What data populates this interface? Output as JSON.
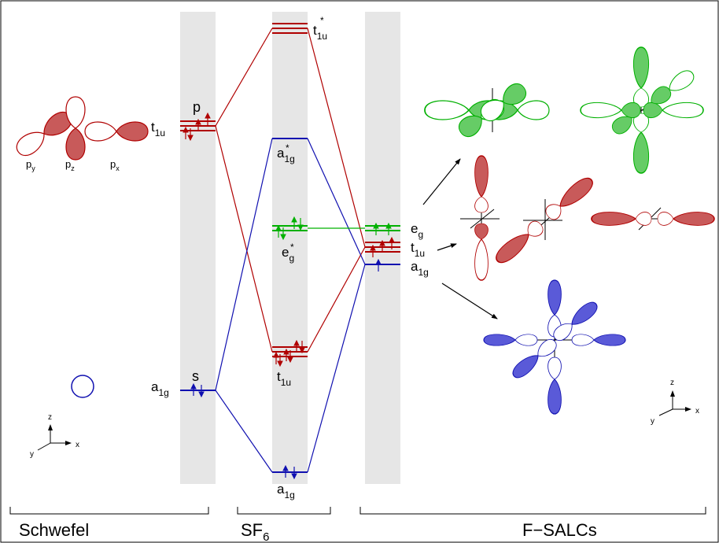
{
  "colors": {
    "red": "#b00000",
    "red_fill": "#c85a5a",
    "blue": "#1010b0",
    "blue_fill": "#5a5ad8",
    "green": "#00b000",
    "green_fill": "#66cc66",
    "column_gray": "#e6e6e6"
  },
  "sulfur": {
    "p_label": "p",
    "s_label": "s",
    "t1u_base": "t",
    "t1u_sub": "1u",
    "a1g_base": "a",
    "a1g_sub": "1g",
    "orbital_py_base": "p",
    "orbital_py_sub": "y",
    "orbital_pz_base": "p",
    "orbital_pz_sub": "z",
    "orbital_px_base": "p",
    "orbital_px_sub": "x"
  },
  "sf6": {
    "t1u_star_base": "t",
    "t1u_star_sub": "1u",
    "a1g_star_base": "a",
    "a1g_star_sub": "1g",
    "eg_star_base": "e",
    "eg_star_sub": "g",
    "t1u_base": "t",
    "t1u_sub": "1u",
    "a1g_base": "a",
    "a1g_sub": "1g",
    "star": "*"
  },
  "salc": {
    "eg_base": "e",
    "eg_sub": "g",
    "t1u_base": "t",
    "t1u_sub": "1u",
    "a1g_base": "a",
    "a1g_sub": "1g"
  },
  "axes": {
    "x": "x",
    "y": "y",
    "z": "z"
  },
  "footer": {
    "schwefel": "Schwefel",
    "sf6_base": "SF",
    "sf6_sub": "6",
    "fsalcs": "F−SALCs"
  }
}
